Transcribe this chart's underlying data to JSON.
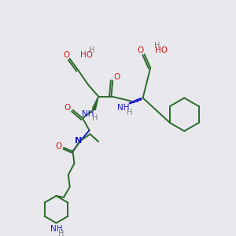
{
  "bg_color": "#e8e8ed",
  "bond_color": "#2d6b2d",
  "n_color": "#1a1acc",
  "o_color": "#cc1a1a",
  "h_color": "#808080",
  "figsize": [
    3.0,
    3.0
  ],
  "dpi": 100,
  "xlim": [
    0,
    300
  ],
  "ylim": [
    0,
    300
  ]
}
